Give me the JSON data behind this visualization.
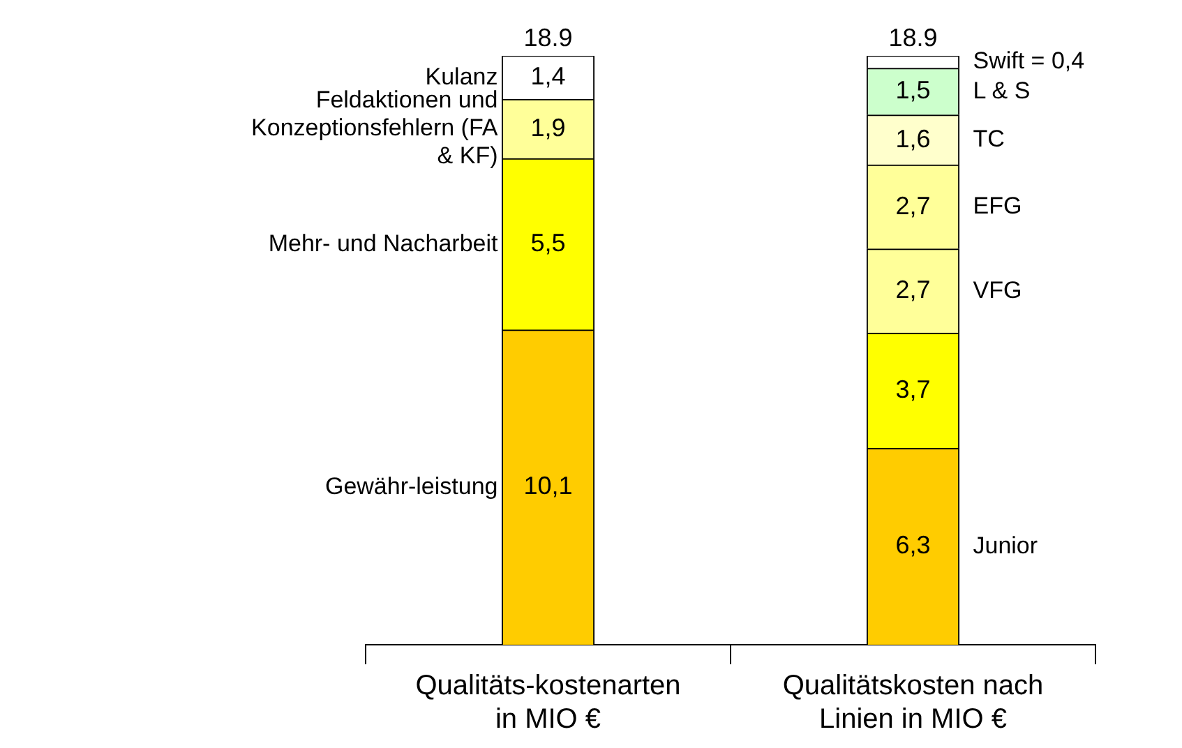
{
  "chart_data": {
    "type": "bar",
    "stacked": true,
    "categories": [
      "Qualitäts-kostenarten in MIO €",
      "Qualitätskosten nach Linien in MIO €"
    ],
    "series": [
      {
        "name": "Gewähr-leistung",
        "color": "#ffcc00",
        "values": [
          10.1,
          null
        ],
        "value_labels": [
          "10,1",
          null
        ]
      },
      {
        "name": "Mehr- und Nacharbeit",
        "color": "#ffff00",
        "values": [
          5.5,
          null
        ],
        "value_labels": [
          "5,5",
          null
        ]
      },
      {
        "name": "Feldaktionen und Konzeptionsfehlern (FA & KF)",
        "color": "#ffff99",
        "values": [
          1.9,
          null
        ],
        "value_labels": [
          "1,9",
          null
        ]
      },
      {
        "name": "Kulanz",
        "color": "#ffffff",
        "values": [
          1.4,
          null
        ],
        "value_labels": [
          "1,4",
          null
        ]
      },
      {
        "name": "Junior",
        "color": "#ffcc00",
        "values": [
          null,
          6.3
        ],
        "value_labels": [
          null,
          "6,3"
        ]
      },
      {
        "color": "#ffff00",
        "values": [
          null,
          3.7
        ],
        "value_labels": [
          null,
          "3,7"
        ]
      },
      {
        "name": "VFG",
        "color": "#ffff99",
        "values": [
          null,
          2.7
        ],
        "value_labels": [
          null,
          "2,7"
        ]
      },
      {
        "name": "EFG",
        "color": "#ffff99",
        "values": [
          null,
          2.7
        ],
        "value_labels": [
          null,
          "2,7"
        ]
      },
      {
        "name": "TC",
        "color": "#ffffcc",
        "values": [
          null,
          1.6
        ],
        "value_labels": [
          null,
          "1,6"
        ]
      },
      {
        "name": "L & S",
        "color": "#ccffcc",
        "values": [
          null,
          1.5
        ],
        "value_labels": [
          null,
          "1,5"
        ]
      },
      {
        "name": "Swift = 0,4",
        "color": "#ffffff",
        "values": [
          null,
          0.4
        ]
      }
    ],
    "totals": [
      "18.9",
      "18.9"
    ],
    "tick_labels": "x",
    "grid": false,
    "legend": false
  }
}
